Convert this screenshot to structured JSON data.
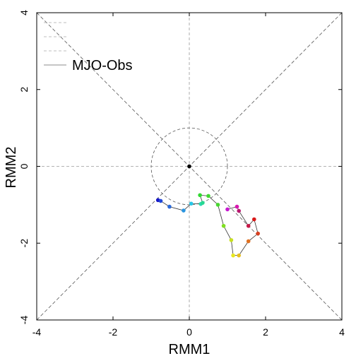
{
  "chart_data": {
    "type": "line",
    "xlabel": "RMM1",
    "ylabel": "RMM2",
    "xlim": [
      -4,
      4
    ],
    "ylim": [
      -4,
      4
    ],
    "x_ticks": [
      -4,
      -2,
      0,
      2,
      4
    ],
    "y_ticks": [
      -4,
      -2,
      0,
      2,
      4
    ],
    "x_tick_labels": [
      "-4",
      "-2",
      "0",
      "2",
      "4"
    ],
    "y_tick_labels": [
      "-4",
      "-2",
      "0",
      "2",
      "4"
    ],
    "grid": false,
    "reference_lines": [
      "x=0",
      "y=0",
      "y=x",
      "y=-x"
    ],
    "unit_circle_radius": 1,
    "legend": {
      "placement": "top-left",
      "entries": [
        {
          "label": "",
          "style": "dashed"
        },
        {
          "label": "",
          "style": "dashed"
        },
        {
          "label": "",
          "style": "dashed"
        },
        {
          "label": "MJO-Obs",
          "style": "solid"
        }
      ]
    },
    "origin_marker": {
      "x": 0,
      "y": 0,
      "color": "#000000"
    },
    "series": [
      {
        "name": "MJO-Obs",
        "line_color": "#333333",
        "x": [
          -0.82,
          -0.75,
          -0.52,
          -0.15,
          0.05,
          0.3,
          0.35,
          0.28,
          0.5,
          0.75,
          0.9,
          1.1,
          1.15,
          1.3,
          1.55,
          1.8,
          1.7,
          1.55,
          1.3,
          1.25,
          1.0
        ],
        "y": [
          -0.88,
          -0.9,
          -1.05,
          -1.15,
          -0.97,
          -0.98,
          -0.95,
          -0.75,
          -0.77,
          -1.0,
          -1.55,
          -1.92,
          -2.32,
          -2.32,
          -1.95,
          -1.75,
          -1.38,
          -1.55,
          -1.16,
          -1.05,
          -1.12
        ],
        "colors": [
          "#1818c8",
          "#2048d8",
          "#2a6ad8",
          "#2a95e0",
          "#28c8e8",
          "#28d8b0",
          "#28d890",
          "#30d830",
          "#40d830",
          "#48d830",
          "#80e020",
          "#c8e020",
          "#e8e820",
          "#e8c020",
          "#e07020",
          "#d84020",
          "#d81818",
          "#c81848",
          "#b81870",
          "#d818b0",
          "#c818d0"
        ]
      }
    ]
  }
}
